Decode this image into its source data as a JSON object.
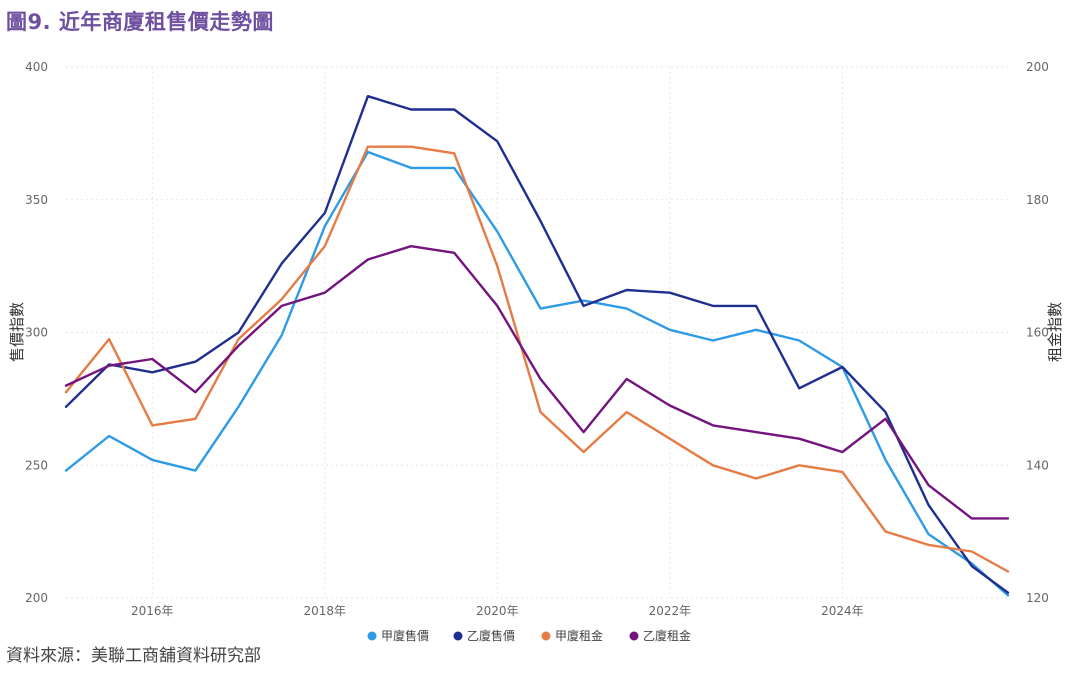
{
  "title": "圖9. 近年商廈租售價走勢圖",
  "source": "資料來源：美聯工商舖資料研究部",
  "chart_data": {
    "type": "line",
    "title": "圖9. 近年商廈租售價走勢圖",
    "ylabel": "售價指數",
    "y2label": "租金指數",
    "ylim": [
      200,
      400
    ],
    "y2lim": [
      120,
      200
    ],
    "yticks": [
      "200",
      "250",
      "300",
      "350",
      "400"
    ],
    "y2ticks": [
      "120",
      "140",
      "160",
      "180",
      "200"
    ],
    "xlim": [
      2015.0,
      2025.92
    ],
    "xticks": [
      {
        "value": 2016,
        "label": "2016年"
      },
      {
        "value": 2018,
        "label": "2018年"
      },
      {
        "value": 2020,
        "label": "2020年"
      },
      {
        "value": 2022,
        "label": "2022年"
      },
      {
        "value": 2024,
        "label": "2024年"
      }
    ],
    "x": [
      2015.0,
      2015.5,
      2016.0,
      2016.5,
      2017.0,
      2017.5,
      2018.0,
      2018.5,
      2019.0,
      2019.5,
      2020.0,
      2020.5,
      2021.0,
      2021.5,
      2022.0,
      2022.5,
      2023.0,
      2023.5,
      2024.0,
      2024.5,
      2025.0,
      2025.5,
      2025.92
    ],
    "series": [
      {
        "name": "甲廈售價",
        "axis": "left",
        "color": "#2e9be6",
        "values": [
          248,
          261,
          252,
          248,
          272,
          299,
          340,
          368,
          362,
          362,
          338,
          309,
          312,
          309,
          301,
          297,
          301,
          297,
          287,
          252,
          224,
          213,
          201
        ]
      },
      {
        "name": "乙廈售價",
        "axis": "left",
        "color": "#1f2f8f",
        "values": [
          272,
          288,
          285,
          289,
          300,
          326,
          345,
          389,
          384,
          384,
          372,
          342,
          310,
          316,
          315,
          310,
          310,
          279,
          287,
          270,
          235,
          212,
          202
        ]
      },
      {
        "name": "甲廈租金",
        "axis": "right",
        "color": "#e57c45",
        "values": [
          151,
          159,
          146,
          147,
          159,
          165,
          173,
          188,
          188,
          187,
          170,
          148,
          142,
          148,
          144,
          140,
          138,
          140,
          139,
          130,
          128,
          127,
          124
        ]
      },
      {
        "name": "乙廈租金",
        "axis": "right",
        "color": "#74157f",
        "values": [
          152,
          155,
          156,
          151,
          158,
          164,
          166,
          171,
          173,
          172,
          164,
          153,
          145,
          153,
          149,
          146,
          145,
          144,
          142,
          147,
          137,
          132,
          132
        ]
      }
    ]
  }
}
